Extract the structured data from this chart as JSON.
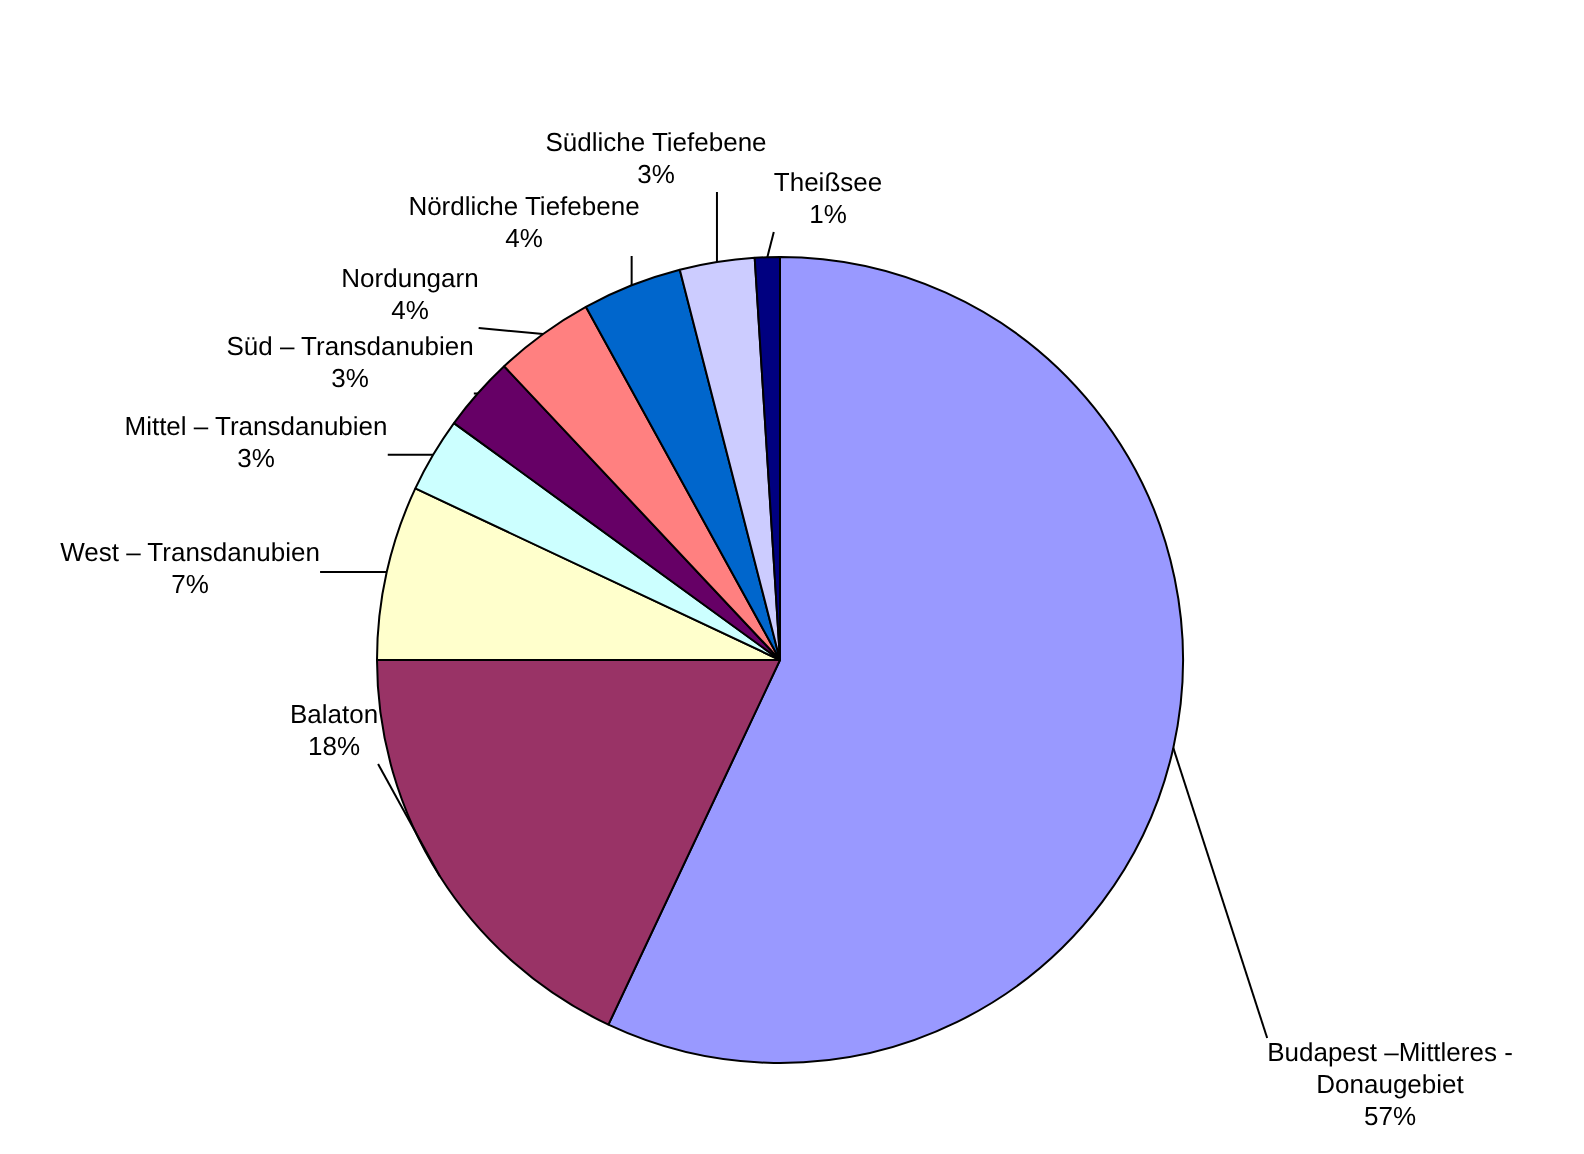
{
  "chart_data": {
    "type": "pie",
    "categories": [
      "Budapest –Mittleres - Donaugebiet",
      "Balaton",
      "West – Transdanubien",
      "Mittel – Transdanubien",
      "Süd – Transdanubien",
      "Nordungarn",
      "Nördliche Tiefebene",
      "Südliche Tiefebene",
      "Theißsee"
    ],
    "values": [
      57,
      18,
      7,
      3,
      3,
      4,
      4,
      3,
      1
    ],
    "value_labels": [
      "57%",
      "18%",
      "7%",
      "3%",
      "3%",
      "4%",
      "4%",
      "3%",
      "1%"
    ],
    "colors": [
      "#9999ff",
      "#993366",
      "#ffffcc",
      "#ccffff",
      "#660066",
      "#ff8080",
      "#0066cc",
      "#ccccff",
      "#000080"
    ],
    "legend": false
  }
}
